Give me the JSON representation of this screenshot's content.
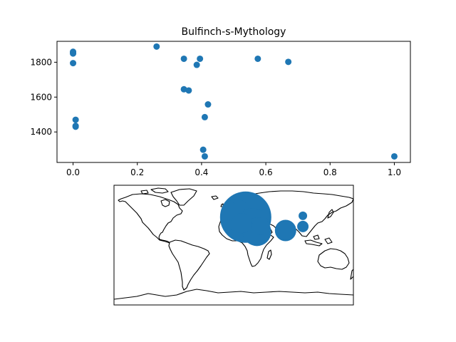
{
  "chart_data": [
    {
      "type": "scatter",
      "title": "Bulfinch-s-Mythology",
      "xlabel": "",
      "ylabel": "",
      "xlim": [
        -0.05,
        1.05
      ],
      "ylim": [
        1225,
        1920
      ],
      "xticks": [
        0.0,
        0.2,
        0.4,
        0.6,
        0.8,
        1.0
      ],
      "xtick_labels": [
        "0.0",
        "0.2",
        "0.4",
        "0.6",
        "0.8",
        "1.0"
      ],
      "yticks": [
        1400,
        1600,
        1800
      ],
      "ytick_labels": [
        "1400",
        "1600",
        "1800"
      ],
      "grid": false,
      "color": "#1f77b4",
      "points": [
        {
          "x": 0.0,
          "y": 1860
        },
        {
          "x": 0.0,
          "y": 1855
        },
        {
          "x": 0.0,
          "y": 1850
        },
        {
          "x": 0.0,
          "y": 1795
        },
        {
          "x": 0.008,
          "y": 1470
        },
        {
          "x": 0.008,
          "y": 1435
        },
        {
          "x": 0.008,
          "y": 1430
        },
        {
          "x": 0.26,
          "y": 1890
        },
        {
          "x": 0.345,
          "y": 1820
        },
        {
          "x": 0.385,
          "y": 1785
        },
        {
          "x": 0.395,
          "y": 1820
        },
        {
          "x": 0.345,
          "y": 1645
        },
        {
          "x": 0.36,
          "y": 1638
        },
        {
          "x": 0.42,
          "y": 1558
        },
        {
          "x": 0.41,
          "y": 1485
        },
        {
          "x": 0.405,
          "y": 1298
        },
        {
          "x": 0.41,
          "y": 1260
        },
        {
          "x": 0.575,
          "y": 1820
        },
        {
          "x": 0.67,
          "y": 1802
        },
        {
          "x": 1.0,
          "y": 1260
        }
      ]
    },
    {
      "type": "scatter",
      "subtype": "map-bubble",
      "projection": "plate-carree",
      "xlim": [
        -180,
        180
      ],
      "ylim": [
        -90,
        90
      ],
      "color": "#1f77b4",
      "points": [
        {
          "lon": 18,
          "lat": 42,
          "size": 36
        },
        {
          "lon": 4,
          "lat": 45,
          "size": 22
        },
        {
          "lon": 28,
          "lat": 32,
          "size": 22
        },
        {
          "lon": 35,
          "lat": 20,
          "size": 20
        },
        {
          "lon": -5,
          "lat": 52,
          "size": 12
        },
        {
          "lon": 12,
          "lat": 33,
          "size": 14
        },
        {
          "lon": 40,
          "lat": 28,
          "size": 12
        },
        {
          "lon": -8,
          "lat": 30,
          "size": 8
        },
        {
          "lon": 78,
          "lat": 22,
          "size": 15
        },
        {
          "lon": 104,
          "lat": 28,
          "size": 8
        },
        {
          "lon": 104,
          "lat": 44,
          "size": 6
        }
      ]
    }
  ]
}
